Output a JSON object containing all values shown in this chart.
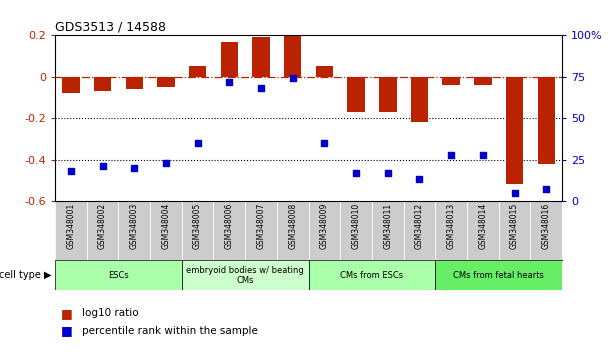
{
  "title": "GDS3513 / 14588",
  "samples": [
    "GSM348001",
    "GSM348002",
    "GSM348003",
    "GSM348004",
    "GSM348005",
    "GSM348006",
    "GSM348007",
    "GSM348008",
    "GSM348009",
    "GSM348010",
    "GSM348011",
    "GSM348012",
    "GSM348013",
    "GSM348014",
    "GSM348015",
    "GSM348016"
  ],
  "log10_ratio": [
    -0.08,
    -0.07,
    -0.06,
    -0.05,
    0.05,
    0.17,
    0.19,
    0.2,
    0.05,
    -0.17,
    -0.17,
    -0.22,
    -0.04,
    -0.04,
    -0.52,
    -0.42
  ],
  "percentile_rank": [
    18,
    21,
    20,
    23,
    35,
    72,
    68,
    74,
    35,
    17,
    17,
    13,
    28,
    28,
    5,
    7
  ],
  "cell_types": [
    {
      "label": "ESCs",
      "start": 0,
      "end": 4,
      "color": "#aaffaa"
    },
    {
      "label": "embryoid bodies w/ beating\nCMs",
      "start": 4,
      "end": 8,
      "color": "#ccffcc"
    },
    {
      "label": "CMs from ESCs",
      "start": 8,
      "end": 12,
      "color": "#aaffaa"
    },
    {
      "label": "CMs from fetal hearts",
      "start": 12,
      "end": 16,
      "color": "#66ee66"
    }
  ],
  "bar_color": "#bb2200",
  "dot_color": "#0000cc",
  "ylim_left": [
    -0.6,
    0.2
  ],
  "ylim_right": [
    0,
    100
  ],
  "yticks_left": [
    -0.6,
    -0.4,
    -0.2,
    0.0,
    0.2
  ],
  "yticks_right": [
    0,
    25,
    50,
    75,
    100
  ],
  "dotted_lines": [
    -0.2,
    -0.4
  ],
  "bar_width": 0.55
}
